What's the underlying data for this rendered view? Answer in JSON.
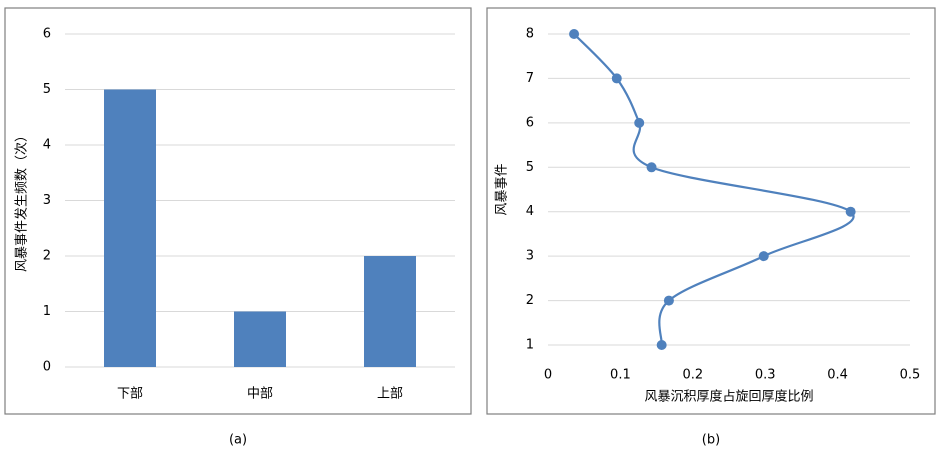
{
  "chart_data": [
    {
      "type": "bar",
      "caption": "(a)",
      "ylabel": "风暴事件发生频数（次）",
      "categories": [
        "下部",
        "中部",
        "上部"
      ],
      "values": [
        5,
        1,
        2
      ],
      "color": "#4f81bd",
      "ylim": [
        0,
        6
      ],
      "yticks": [
        0,
        1,
        2,
        3,
        4,
        5,
        6
      ],
      "grid": true
    },
    {
      "type": "line",
      "caption": "(b)",
      "xlabel": "风暴沉积厚度占旋回厚度比例",
      "ylabel": "风暴事件",
      "x": [
        0.157,
        0.167,
        0.298,
        0.418,
        0.143,
        0.126,
        0.095,
        0.036
      ],
      "y": [
        1,
        2,
        3,
        4,
        5,
        6,
        7,
        8
      ],
      "color": "#4f81bd",
      "smooth": true,
      "xlim": [
        0,
        0.5
      ],
      "xticks": [
        0,
        0.1,
        0.2,
        0.3,
        0.4,
        0.5
      ],
      "ylim": [
        1,
        8
      ],
      "yticks": [
        1,
        2,
        3,
        4,
        5,
        6,
        7,
        8
      ],
      "grid": true
    }
  ]
}
